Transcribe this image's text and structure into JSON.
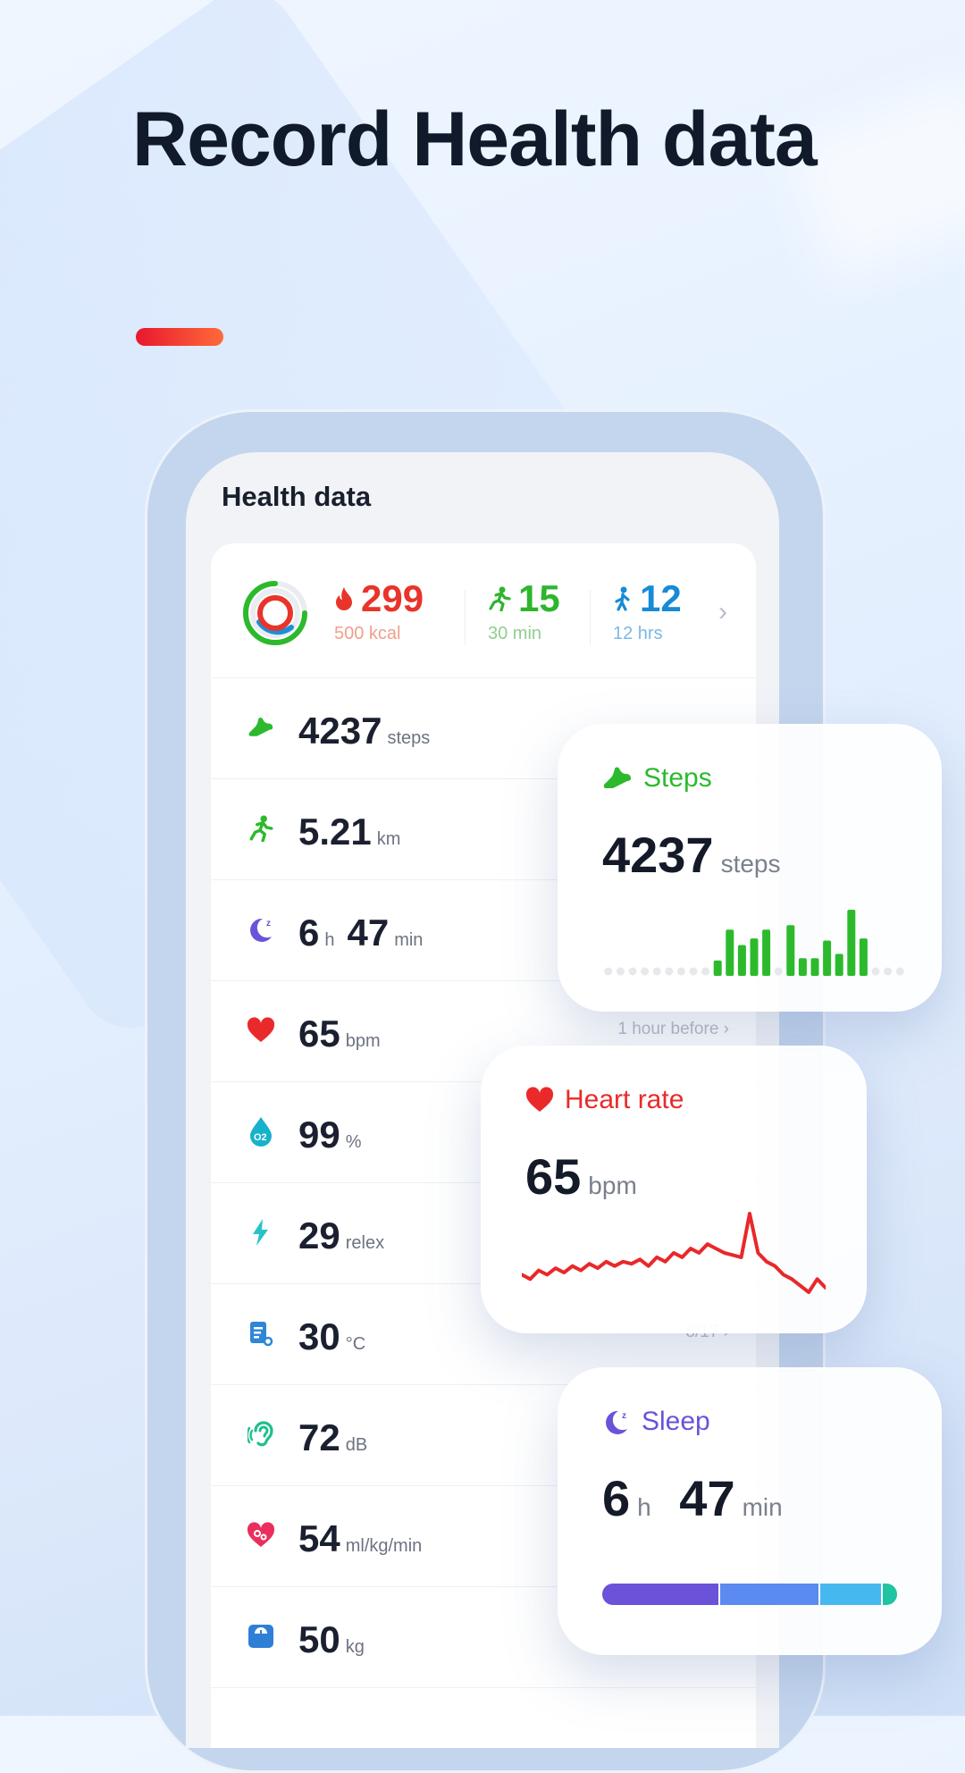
{
  "headline": "Record Health data",
  "colors": {
    "accent_start": "#e8172e",
    "accent_end": "#ff6a3a",
    "red": "#ea2a2a",
    "green": "#2cba2c",
    "blue": "#1a8fd6",
    "purple": "#6b52d9"
  },
  "screen": {
    "title": "Health data",
    "summary": [
      {
        "icon": "flame-icon",
        "value": "299",
        "sub": "500 kcal",
        "color": "#e8342a",
        "sub_color": "#f0a08a"
      },
      {
        "icon": "run-icon",
        "value": "15",
        "sub": "30 min",
        "color": "#2db52d",
        "sub_color": "#8fcf8f"
      },
      {
        "icon": "walk-icon",
        "value": "12",
        "sub": "12 hrs",
        "color": "#178ad8",
        "sub_color": "#7cb8e6"
      }
    ],
    "rows": [
      {
        "icon": "shoe-icon",
        "value": "4237",
        "unit": "steps",
        "meta": ""
      },
      {
        "icon": "run-icon",
        "value": "5.21",
        "unit": "km",
        "meta": ""
      },
      {
        "icon": "moon-icon",
        "value": "6",
        "unit": "h",
        "value2": "47",
        "unit2": "min",
        "meta": ""
      },
      {
        "icon": "heart-icon",
        "value": "65",
        "unit": "bpm",
        "meta": "1 hour before"
      },
      {
        "icon": "oxygen-drop-icon",
        "value": "99",
        "unit": "%",
        "meta": ""
      },
      {
        "icon": "bolt-icon",
        "value": "29",
        "unit": "relex",
        "meta": ""
      },
      {
        "icon": "thermometer-icon",
        "value": "30",
        "unit": "°C",
        "meta": "8/17"
      },
      {
        "icon": "ear-icon",
        "value": "72",
        "unit": "dB",
        "meta": ""
      },
      {
        "icon": "heart-pulse-icon",
        "value": "54",
        "unit": "ml/kg/min",
        "meta": ""
      },
      {
        "icon": "scale-icon",
        "value": "50",
        "unit": "kg",
        "meta": ""
      }
    ]
  },
  "steps_card": {
    "title": "Steps",
    "value": "4237",
    "unit": "steps",
    "bars": [
      0,
      0,
      0,
      0,
      0,
      0,
      0,
      0,
      0,
      14,
      42,
      28,
      34,
      42,
      0,
      46,
      16,
      16,
      32,
      20,
      60,
      34,
      0,
      0,
      0
    ]
  },
  "heart_card": {
    "title": "Heart rate",
    "value": "65",
    "unit": "bpm",
    "series": [
      60,
      58,
      62,
      60,
      63,
      61,
      64,
      62,
      65,
      63,
      66,
      64,
      66,
      65,
      67,
      64,
      68,
      66,
      70,
      68,
      72,
      70,
      74,
      72,
      70,
      69,
      68,
      88,
      70,
      66,
      64,
      60,
      58,
      55,
      52,
      58,
      54
    ]
  },
  "sleep_card": {
    "title": "Sleep",
    "value": "6",
    "unit": "h",
    "value2": "47",
    "unit2": "min",
    "segments": [
      {
        "fraction": 0.4,
        "color": "#6b52d9"
      },
      {
        "fraction": 0.34,
        "color": "#5b8af0"
      },
      {
        "fraction": 0.21,
        "color": "#46b8f0"
      },
      {
        "fraction": 0.05,
        "color": "#1fc4a0"
      }
    ]
  }
}
